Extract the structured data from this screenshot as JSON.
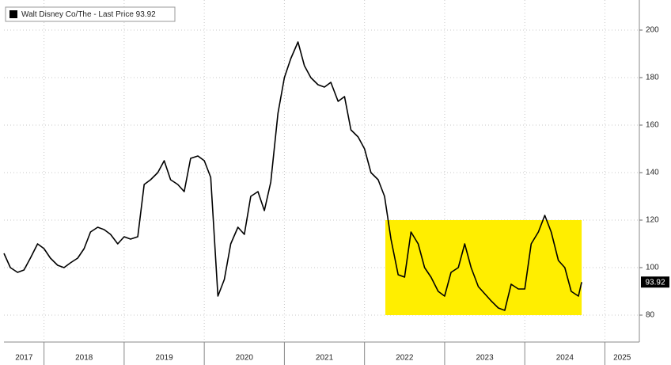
{
  "chart_data": {
    "type": "line",
    "legend": "Walt Disney Co/The - Last Price 93.92",
    "last_price": 93.92,
    "xlim": [
      2017.5,
      2025.43
    ],
    "xticks": [
      2017,
      2018,
      2019,
      2020,
      2021,
      2022,
      2023,
      2024,
      2025
    ],
    "ylim": [
      68.67,
      212.67
    ],
    "yticks": [
      80,
      100,
      120,
      140,
      160,
      180,
      200
    ],
    "grid": true,
    "highlight_box": {
      "x": [
        2022.26,
        2024.71
      ],
      "y": [
        80,
        120
      ],
      "color": "#ffee00"
    },
    "series": [
      {
        "name": "Walt Disney Co/The",
        "color": "#000000",
        "x": [
          2017.5,
          2017.58,
          2017.67,
          2017.75,
          2017.83,
          2017.92,
          2018.0,
          2018.08,
          2018.17,
          2018.25,
          2018.33,
          2018.42,
          2018.5,
          2018.58,
          2018.67,
          2018.75,
          2018.83,
          2018.92,
          2019.0,
          2019.08,
          2019.17,
          2019.25,
          2019.33,
          2019.42,
          2019.5,
          2019.58,
          2019.67,
          2019.75,
          2019.83,
          2019.92,
          2020.0,
          2020.08,
          2020.17,
          2020.25,
          2020.33,
          2020.42,
          2020.5,
          2020.58,
          2020.67,
          2020.75,
          2020.83,
          2020.92,
          2021.0,
          2021.08,
          2021.17,
          2021.25,
          2021.33,
          2021.42,
          2021.5,
          2021.58,
          2021.67,
          2021.75,
          2021.83,
          2021.92,
          2022.0,
          2022.08,
          2022.17,
          2022.25,
          2022.33,
          2022.42,
          2022.5,
          2022.58,
          2022.67,
          2022.75,
          2022.83,
          2022.92,
          2023.0,
          2023.08,
          2023.17,
          2023.25,
          2023.33,
          2023.42,
          2023.5,
          2023.58,
          2023.67,
          2023.75,
          2023.83,
          2023.92,
          2024.0,
          2024.08,
          2024.17,
          2024.25,
          2024.33,
          2024.42,
          2024.5,
          2024.58,
          2024.67,
          2024.71
        ],
        "values": [
          106,
          100,
          98,
          99,
          104,
          110,
          108,
          104,
          101,
          100,
          102,
          104,
          108,
          115,
          117,
          116,
          114,
          110,
          113,
          112,
          113,
          135,
          137,
          140,
          145,
          137,
          135,
          132,
          146,
          147,
          145,
          138,
          88,
          95,
          110,
          117,
          114,
          130,
          132,
          124,
          136,
          165,
          180,
          188,
          195,
          185,
          180,
          177,
          176,
          178,
          170,
          172,
          158,
          155,
          150,
          140,
          137,
          130,
          112,
          97,
          96,
          115,
          110,
          100,
          96,
          90,
          88,
          98,
          100,
          110,
          100,
          92,
          89,
          86,
          83,
          82,
          93,
          91,
          91,
          110,
          115,
          122,
          115,
          103,
          100,
          90,
          88,
          93.92
        ]
      }
    ]
  }
}
